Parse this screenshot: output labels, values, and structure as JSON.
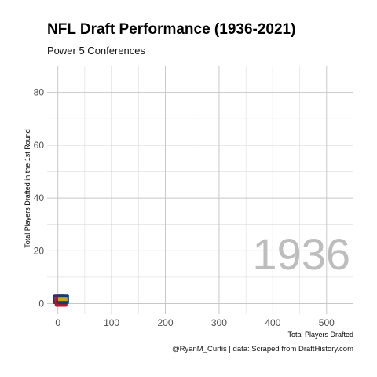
{
  "title": "NFL Draft Performance (1936-2021)",
  "subtitle": "Power 5 Conferences",
  "caption": "@RyanM_Curtis | data: Scraped from DraftHistory.com",
  "chart_data": {
    "type": "scatter",
    "title": "NFL Draft Performance (1936-2021)",
    "subtitle": "Power 5 Conferences",
    "xlabel": "Total Players Drafted",
    "ylabel": "Total Players Drafted in the 1st Round",
    "xlim": [
      -20,
      550
    ],
    "ylim": [
      -4,
      90
    ],
    "x_ticks": [
      0,
      100,
      200,
      300,
      400,
      500
    ],
    "y_ticks": [
      0,
      20,
      40,
      60,
      80
    ],
    "grid": true,
    "frame_label": "1936",
    "points": [
      {
        "x": 3,
        "y": 1,
        "marker": "LSU logo",
        "color": "#461d7c",
        "accent": "#fdd023"
      },
      {
        "x": 6,
        "y": 0,
        "marker": "team logo",
        "color": "#c8102e",
        "accent": "#002855"
      },
      {
        "x": 9,
        "y": 1,
        "marker": "team logo",
        "color": "#1b3a6b",
        "accent": "#c9a227"
      }
    ]
  }
}
